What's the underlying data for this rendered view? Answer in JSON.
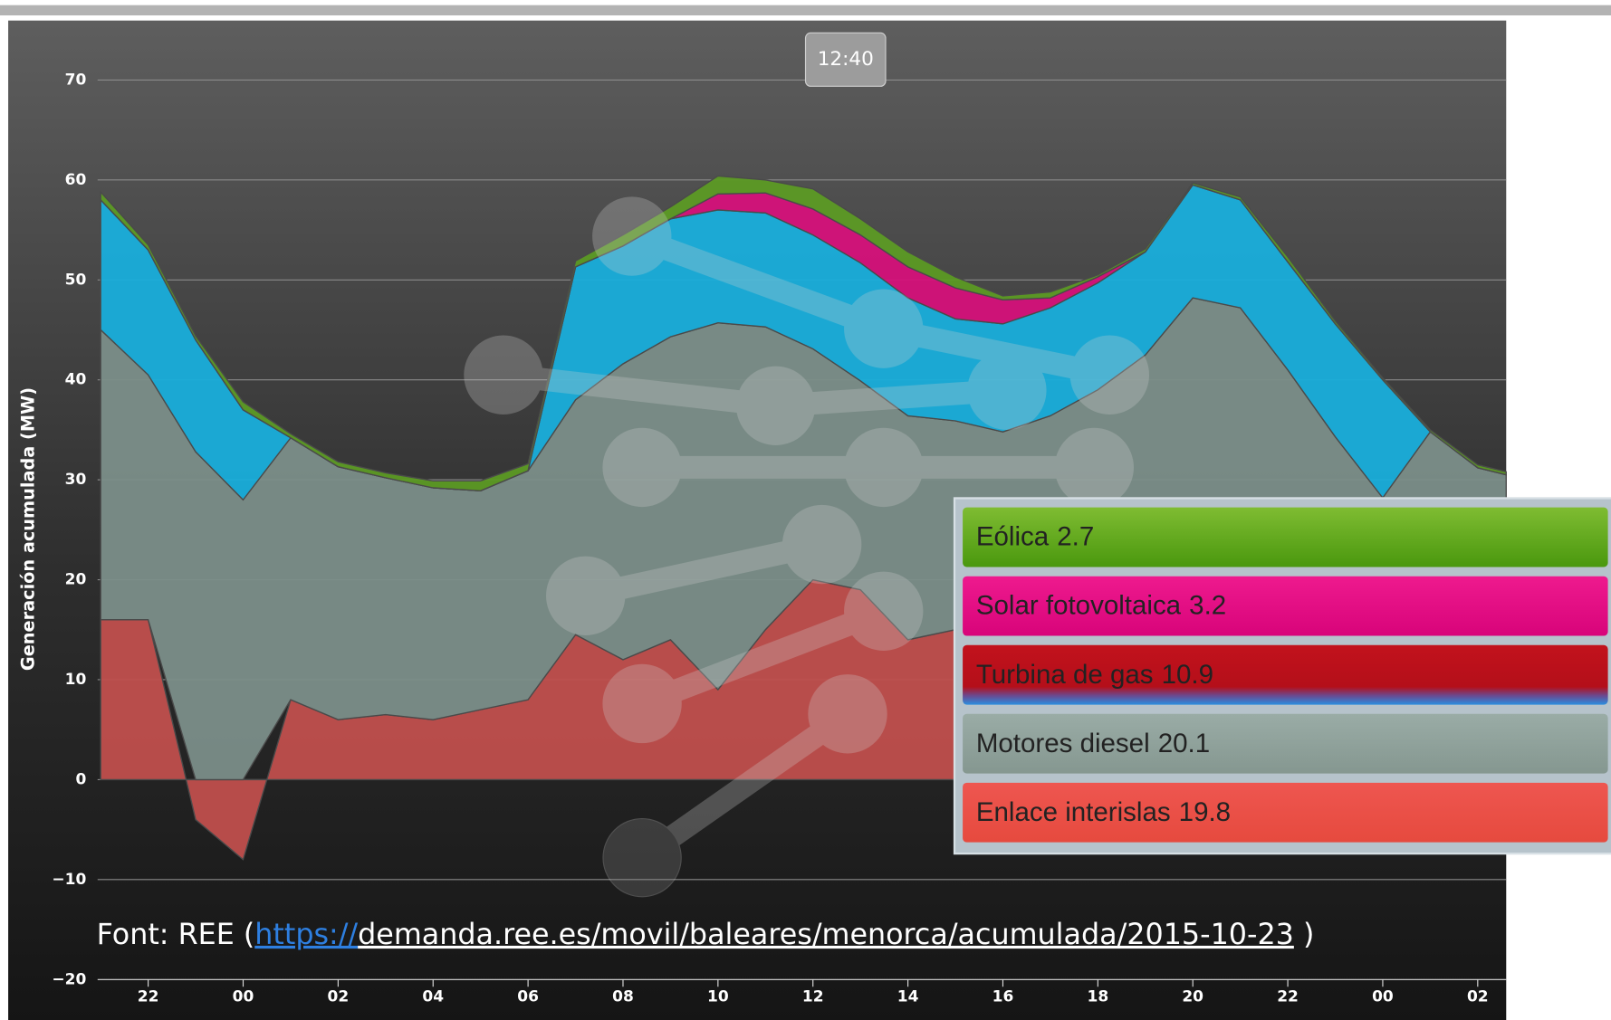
{
  "chart_data": {
    "type": "stacked-area",
    "y_label": "Generación acumulada (MW)",
    "x": [
      21,
      22,
      23,
      24,
      25,
      26,
      27,
      28,
      29,
      30,
      31,
      32,
      33,
      34,
      35,
      36,
      37,
      38,
      39,
      40,
      41,
      42,
      43,
      44,
      45,
      46,
      47,
      48,
      49,
      50,
      50.6
    ],
    "series": [
      {
        "name": "Enlace interislas",
        "color": "#c04f4d",
        "values": [
          16,
          16,
          -4,
          -8,
          8,
          6,
          6.5,
          6,
          7,
          8,
          14.5,
          12,
          14,
          9,
          15,
          20,
          19,
          14,
          15,
          14,
          13,
          12,
          11,
          10,
          10,
          9,
          8,
          7,
          6,
          6,
          6
        ]
      },
      {
        "name": "Motores diesel",
        "color": "#7b8e89",
        "values": [
          29,
          24.5,
          32.8,
          28,
          26.2,
          25.3,
          23.7,
          23.2,
          21.9,
          22.9,
          23.5,
          29.6,
          30.3,
          36.7,
          30.3,
          23.1,
          20.9,
          22.4,
          20.9,
          20.8,
          23.4,
          27,
          31.5,
          38.2,
          37.2,
          32,
          26.3,
          21.2,
          28.8,
          25.2,
          24.5
        ]
      },
      {
        "name": "Turbina de gas",
        "color": "#19aedb",
        "values": [
          13,
          12.5,
          11.2,
          9,
          0,
          0,
          0,
          0,
          0,
          0,
          13.3,
          11.8,
          11.8,
          11.3,
          11.4,
          11.4,
          11.8,
          11.8,
          10.2,
          10.8,
          10.8,
          10.7,
          10.3,
          11.3,
          10.8,
          10.8,
          11.3,
          11.8,
          0,
          0,
          0
        ]
      },
      {
        "name": "Solar fotovoltaica",
        "color": "#d5117a",
        "values": [
          0,
          0,
          0,
          0,
          0,
          0,
          0,
          0,
          0,
          0,
          0,
          0,
          0,
          1.6,
          2,
          2.6,
          2.8,
          3.1,
          3.1,
          2.4,
          1,
          0.6,
          0,
          0,
          0,
          0,
          0,
          0,
          0,
          0,
          0
        ]
      },
      {
        "name": "Eólica",
        "color": "#5c9a24",
        "values": [
          0.8,
          0.5,
          0.4,
          0.8,
          0.4,
          0.5,
          0.5,
          0.7,
          1,
          0.7,
          0.6,
          1.1,
          1.2,
          1.8,
          1.3,
          2,
          1.6,
          1.5,
          1.1,
          0.4,
          0.6,
          0.2,
          0.3,
          0.2,
          0.3,
          0.5,
          0.3,
          0.2,
          0.2,
          0.3,
          0.3
        ]
      }
    ],
    "xlim": [
      21,
      50.6
    ],
    "xticks": [
      22,
      {
        "value": 24,
        "label": "00"
      },
      {
        "value": 26,
        "label": "02"
      },
      {
        "value": 28,
        "label": "04"
      },
      {
        "value": 30,
        "label": "06"
      },
      {
        "value": 32,
        "label": "08"
      },
      {
        "value": 34,
        "label": "10"
      },
      {
        "value": 36,
        "label": "12"
      },
      {
        "value": 38,
        "label": "14"
      },
      {
        "value": 40,
        "label": "16"
      },
      {
        "value": 42,
        "label": "18"
      },
      {
        "value": 44,
        "label": "20"
      },
      {
        "value": 46,
        "label": "22"
      },
      {
        "value": 48,
        "label": "00"
      },
      {
        "value": 50,
        "label": "02"
      }
    ],
    "ylim": [
      -20,
      76
    ],
    "yticks": [
      {
        "value": -20,
        "label": "−20"
      },
      {
        "value": -10,
        "label": "−10"
      },
      0,
      10,
      20,
      30,
      40,
      50,
      60,
      70
    ],
    "grid": true,
    "tooltip": {
      "label": "12:40",
      "x": 36.67,
      "values": [
        19.8,
        20.1,
        10.9,
        3.2,
        2.7
      ]
    },
    "source": {
      "prefix": "Font: REE (",
      "link_scheme": "https://",
      "link_rest": "demanda.ree.es/movil/baleares/menorca/acumulada/2015-10-23",
      "suffix": " )"
    }
  }
}
